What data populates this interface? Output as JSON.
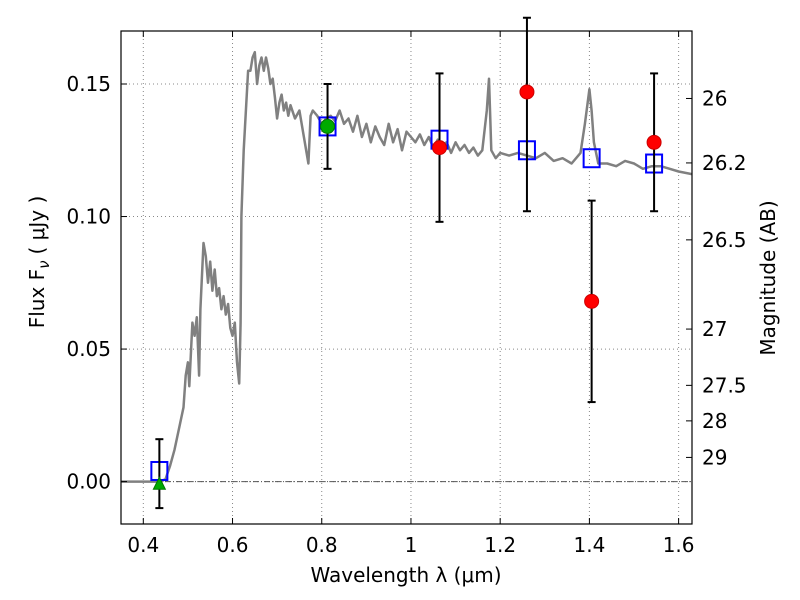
{
  "chart_data": {
    "type": "scatter",
    "xlabel": "Wavelength  λ (μm)",
    "ylabel": "Flux  F",
    "ylabel_sub": "ν",
    "ylabel_unit": "( μJy )",
    "y2label": "Magnitude (AB)",
    "xlim": [
      0.35,
      1.63
    ],
    "ylim": [
      -0.016,
      0.17
    ],
    "x_ticks": [
      0.4,
      0.6,
      0.8,
      1.0,
      1.2,
      1.4,
      1.6
    ],
    "x_tick_labels": [
      "0.4",
      "0.6",
      "0.8",
      "1",
      "1.2",
      "1.4",
      "1.6"
    ],
    "y_ticks": [
      0.0,
      0.05,
      0.1,
      0.15
    ],
    "y_tick_labels": [
      "0.00",
      "0.05",
      "0.10",
      "0.15"
    ],
    "y2_ticks": [
      {
        "label": "26",
        "mag": 26.0
      },
      {
        "label": "26.2",
        "mag": 26.2
      },
      {
        "label": "26.5",
        "mag": 26.5
      },
      {
        "label": "27",
        "mag": 27.0
      },
      {
        "label": "27.5",
        "mag": 27.5
      },
      {
        "label": "28",
        "mag": 28.0
      },
      {
        "label": "29",
        "mag": 29.0
      }
    ],
    "grid": true,
    "zero_line": true,
    "colors": {
      "model": "#808080",
      "model_phot": "#0000ff",
      "obs": "#ff0000",
      "green": "#00aa00",
      "errorbar": "#000000",
      "grid": "#808080"
    },
    "series": [
      {
        "kind": "line",
        "points": [
          [
            0.35,
            0.0
          ],
          [
            0.44,
            0.0
          ],
          [
            0.45,
            0.001
          ],
          [
            0.46,
            0.006
          ],
          [
            0.47,
            0.012
          ],
          [
            0.48,
            0.02
          ],
          [
            0.49,
            0.028
          ],
          [
            0.495,
            0.04
          ],
          [
            0.5,
            0.045
          ],
          [
            0.503,
            0.036
          ],
          [
            0.51,
            0.06
          ],
          [
            0.515,
            0.055
          ],
          [
            0.52,
            0.062
          ],
          [
            0.525,
            0.04
          ],
          [
            0.528,
            0.065
          ],
          [
            0.535,
            0.09
          ],
          [
            0.54,
            0.085
          ],
          [
            0.545,
            0.075
          ],
          [
            0.55,
            0.083
          ],
          [
            0.555,
            0.072
          ],
          [
            0.56,
            0.08
          ],
          [
            0.565,
            0.07
          ],
          [
            0.57,
            0.073
          ],
          [
            0.575,
            0.065
          ],
          [
            0.58,
            0.07
          ],
          [
            0.585,
            0.063
          ],
          [
            0.59,
            0.067
          ],
          [
            0.595,
            0.058
          ],
          [
            0.6,
            0.055
          ],
          [
            0.605,
            0.06
          ],
          [
            0.61,
            0.045
          ],
          [
            0.615,
            0.037
          ],
          [
            0.618,
            0.06
          ],
          [
            0.62,
            0.1
          ],
          [
            0.625,
            0.125
          ],
          [
            0.63,
            0.14
          ],
          [
            0.635,
            0.155
          ],
          [
            0.64,
            0.155
          ],
          [
            0.645,
            0.16
          ],
          [
            0.65,
            0.162
          ],
          [
            0.655,
            0.15
          ],
          [
            0.66,
            0.157
          ],
          [
            0.665,
            0.16
          ],
          [
            0.67,
            0.155
          ],
          [
            0.675,
            0.16
          ],
          [
            0.68,
            0.156
          ],
          [
            0.685,
            0.15
          ],
          [
            0.69,
            0.152
          ],
          [
            0.695,
            0.145
          ],
          [
            0.7,
            0.137
          ],
          [
            0.705,
            0.143
          ],
          [
            0.71,
            0.146
          ],
          [
            0.715,
            0.14
          ],
          [
            0.72,
            0.143
          ],
          [
            0.725,
            0.138
          ],
          [
            0.73,
            0.142
          ],
          [
            0.74,
            0.137
          ],
          [
            0.75,
            0.14
          ],
          [
            0.76,
            0.13
          ],
          [
            0.77,
            0.12
          ],
          [
            0.775,
            0.138
          ],
          [
            0.78,
            0.14
          ],
          [
            0.79,
            0.138
          ],
          [
            0.8,
            0.135
          ],
          [
            0.81,
            0.137
          ],
          [
            0.82,
            0.138
          ],
          [
            0.83,
            0.136
          ],
          [
            0.84,
            0.14
          ],
          [
            0.85,
            0.135
          ],
          [
            0.86,
            0.137
          ],
          [
            0.87,
            0.132
          ],
          [
            0.88,
            0.138
          ],
          [
            0.89,
            0.13
          ],
          [
            0.9,
            0.135
          ],
          [
            0.91,
            0.128
          ],
          [
            0.92,
            0.134
          ],
          [
            0.93,
            0.13
          ],
          [
            0.94,
            0.127
          ],
          [
            0.95,
            0.135
          ],
          [
            0.96,
            0.128
          ],
          [
            0.97,
            0.133
          ],
          [
            0.98,
            0.125
          ],
          [
            0.99,
            0.132
          ],
          [
            1.0,
            0.13
          ],
          [
            1.01,
            0.128
          ],
          [
            1.02,
            0.131
          ],
          [
            1.03,
            0.127
          ],
          [
            1.04,
            0.13
          ],
          [
            1.05,
            0.126
          ],
          [
            1.06,
            0.129
          ],
          [
            1.07,
            0.127
          ],
          [
            1.08,
            0.128
          ],
          [
            1.09,
            0.124
          ],
          [
            1.1,
            0.128
          ],
          [
            1.11,
            0.125
          ],
          [
            1.12,
            0.127
          ],
          [
            1.13,
            0.124
          ],
          [
            1.14,
            0.126
          ],
          [
            1.15,
            0.123
          ],
          [
            1.16,
            0.125
          ],
          [
            1.17,
            0.14
          ],
          [
            1.175,
            0.152
          ],
          [
            1.18,
            0.125
          ],
          [
            1.19,
            0.122
          ],
          [
            1.2,
            0.124
          ],
          [
            1.22,
            0.123
          ],
          [
            1.24,
            0.124
          ],
          [
            1.26,
            0.123
          ],
          [
            1.28,
            0.122
          ],
          [
            1.3,
            0.124
          ],
          [
            1.32,
            0.121
          ],
          [
            1.34,
            0.122
          ],
          [
            1.36,
            0.12
          ],
          [
            1.38,
            0.124
          ],
          [
            1.39,
            0.135
          ],
          [
            1.4,
            0.148
          ],
          [
            1.405,
            0.14
          ],
          [
            1.41,
            0.128
          ],
          [
            1.42,
            0.12
          ],
          [
            1.44,
            0.12
          ],
          [
            1.46,
            0.119
          ],
          [
            1.48,
            0.121
          ],
          [
            1.5,
            0.12
          ],
          [
            1.52,
            0.118
          ],
          [
            1.54,
            0.119
          ],
          [
            1.56,
            0.119
          ],
          [
            1.58,
            0.118
          ],
          [
            1.6,
            0.117
          ],
          [
            1.63,
            0.116
          ]
        ]
      },
      {
        "kind": "square",
        "points": [
          [
            0.436,
            0.004
          ],
          [
            0.813,
            0.134
          ],
          [
            1.064,
            0.129
          ],
          [
            1.26,
            0.125
          ],
          [
            1.405,
            0.122
          ],
          [
            1.545,
            0.12
          ]
        ]
      },
      {
        "kind": "errorbar",
        "points": [
          {
            "x": 0.436,
            "lo": -0.01,
            "hi": 0.016
          },
          {
            "x": 0.813,
            "lo": 0.118,
            "hi": 0.15
          },
          {
            "x": 1.064,
            "lo": 0.098,
            "hi": 0.154
          },
          {
            "x": 1.26,
            "lo": 0.102,
            "hi": 0.175
          },
          {
            "x": 1.405,
            "lo": 0.03,
            "hi": 0.106
          },
          {
            "x": 1.545,
            "lo": 0.102,
            "hi": 0.154
          }
        ]
      },
      {
        "kind": "circle",
        "points": [
          [
            1.064,
            0.126
          ],
          [
            1.26,
            0.147
          ],
          [
            1.405,
            0.068
          ],
          [
            1.545,
            0.128
          ]
        ]
      },
      {
        "kind": "circle-green",
        "points": [
          [
            0.813,
            0.134
          ]
        ]
      },
      {
        "kind": "triangle-green",
        "points": [
          [
            0.436,
            -0.001
          ]
        ]
      }
    ]
  }
}
